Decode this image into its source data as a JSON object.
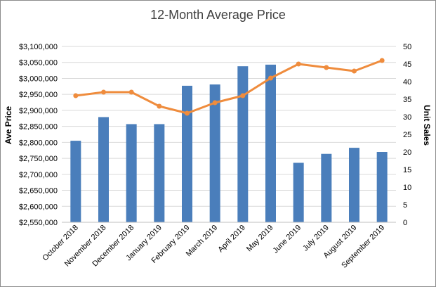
{
  "chart_data": {
    "type": "bar",
    "title": "12-Month Average Price",
    "ylabel": "Ave Price",
    "y2label": "Unit Sales",
    "categories": [
      "October 2018",
      "November 2018",
      "December 2018",
      "January 2019",
      "February 2019",
      "March 2019",
      "April 2019",
      "May 2019",
      "June 2019",
      "July 2019",
      "August 2019",
      "September 2019"
    ],
    "series": [
      {
        "type": "bar",
        "axis": "left",
        "color": "#4a7ebb",
        "values": [
          2805000,
          2879000,
          2857000,
          2857000,
          2977000,
          2981000,
          3038000,
          3043000,
          2736000,
          2764000,
          2783000,
          2770000
        ]
      },
      {
        "type": "line",
        "axis": "right",
        "color": "#ef8c3d",
        "values": [
          36,
          37,
          37,
          33,
          31,
          34,
          36,
          41,
          45,
          44,
          43,
          46
        ]
      }
    ],
    "ylim": [
      2550000,
      3100000
    ],
    "ytick_step": 50000,
    "ytick_labels": [
      "$2,550,000",
      "$2,600,000",
      "$2,650,000",
      "$2,700,000",
      "$2,750,000",
      "$2,800,000",
      "$2,850,000",
      "$2,900,000",
      "$2,950,000",
      "$3,000,000",
      "$3,050,000",
      "$3,100,000"
    ],
    "y2lim": [
      0,
      50
    ],
    "y2tick_step": 5,
    "y2tick_labels": [
      "0",
      "5",
      "10",
      "15",
      "20",
      "25",
      "30",
      "35",
      "40",
      "45",
      "50"
    ],
    "grid": true,
    "gridColor": "#d9d9d9",
    "legend": "none"
  }
}
